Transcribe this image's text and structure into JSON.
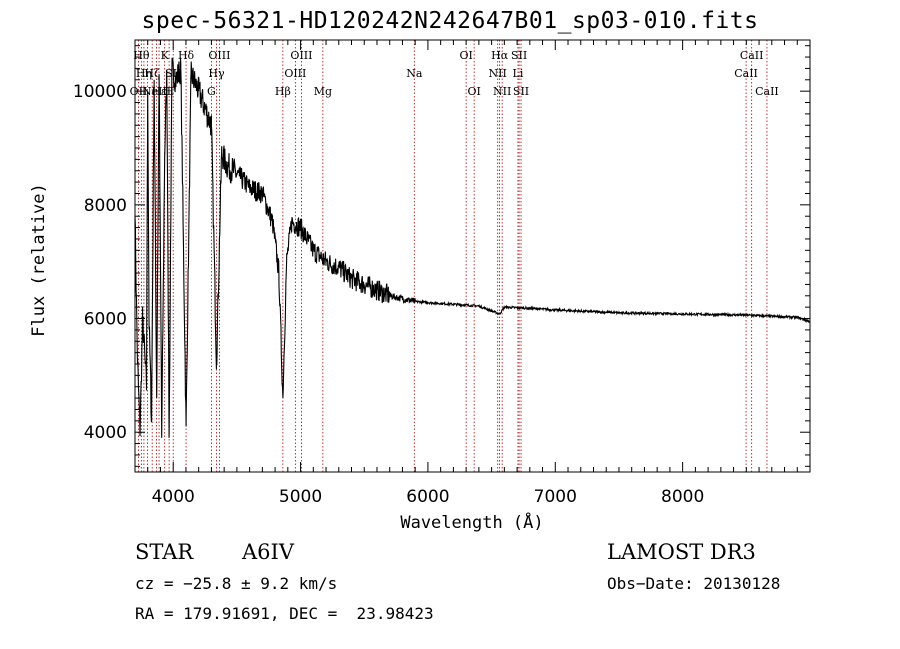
{
  "page_title": "spec-56321-HD120242N242647B01_sp03-010.fits",
  "chart_data": {
    "type": "line",
    "title": "spec-56321-HD120242N242647B01_sp03-010.fits",
    "xlabel": "Wavelength (Å)",
    "ylabel": "Flux (relative)",
    "xlim": [
      3700,
      9000
    ],
    "ylim": [
      3300,
      10900
    ],
    "x_ticks": [
      4000,
      5000,
      6000,
      7000,
      8000
    ],
    "y_ticks": [
      4000,
      6000,
      8000,
      10000
    ],
    "grid": false,
    "series": [
      {
        "x": [
          3700,
          3720,
          3740,
          3760,
          3790,
          3800,
          3810,
          3830,
          3850,
          3870,
          3889,
          3910,
          3933,
          3950,
          3968,
          3990,
          4020,
          4060,
          4101,
          4140,
          4200,
          4250,
          4300,
          4340,
          4380,
          4420,
          4470,
          4520,
          4600,
          4700,
          4780,
          4830,
          4861,
          4890,
          4930,
          5000,
          5100,
          5200,
          5300,
          5400,
          5500,
          5600,
          5700,
          5800,
          5900,
          6000,
          6200,
          6400,
          6563,
          6600,
          6800,
          7000,
          7500,
          8000,
          8500,
          8900,
          9000
        ],
        "y": [
          7800,
          5200,
          4000,
          6000,
          4800,
          10000,
          6000,
          4200,
          10200,
          4600,
          10300,
          3900,
          8900,
          10300,
          3900,
          10400,
          10200,
          10400,
          4100,
          10300,
          10000,
          9700,
          9400,
          5200,
          8900,
          8700,
          8600,
          8500,
          8300,
          8200,
          7700,
          6800,
          4600,
          7000,
          7700,
          7600,
          7200,
          7000,
          6900,
          6700,
          6600,
          6500,
          6400,
          6350,
          6300,
          6280,
          6250,
          6220,
          6080,
          6200,
          6180,
          6150,
          6100,
          6080,
          6060,
          6020,
          5950
        ]
      }
    ],
    "line_labels": [
      {
        "x": 3727,
        "label": "OII",
        "row": 3
      },
      {
        "x": 3750,
        "label": "Hθ",
        "row": 1
      },
      {
        "x": 3770,
        "label": "Hη",
        "row": 2
      },
      {
        "x": 3798,
        "label": "",
        "row": 0
      },
      {
        "x": 3835,
        "label": "Hζ",
        "row": 2
      },
      {
        "x": 3869,
        "label": "NeIII",
        "row": 3
      },
      {
        "x": 3889,
        "label": "Hε",
        "row": 3
      },
      {
        "x": 3933,
        "label": "K",
        "row": 1
      },
      {
        "x": 3968,
        "label": "H",
        "row": 3
      },
      {
        "x": 4000,
        "label": "SII",
        "row": 2
      },
      {
        "x": 4101,
        "label": "Hδ",
        "row": 1
      },
      {
        "x": 4300,
        "label": "G",
        "row": 3
      },
      {
        "x": 4340,
        "label": "Hγ",
        "row": 2
      },
      {
        "x": 4363,
        "label": "OIII",
        "row": 1
      },
      {
        "x": 4861,
        "label": "Hβ",
        "row": 3
      },
      {
        "x": 4959,
        "label": "OIII",
        "row": 2
      },
      {
        "x": 5007,
        "label": "OIII",
        "row": 1
      },
      {
        "x": 5175,
        "label": "Mg",
        "row": 3
      },
      {
        "x": 5893,
        "label": "Na",
        "row": 2
      },
      {
        "x": 6300,
        "label": "OI",
        "row": 1
      },
      {
        "x": 6363,
        "label": "OI",
        "row": 3
      },
      {
        "x": 6548,
        "label": "NII",
        "row": 2
      },
      {
        "x": 6563,
        "label": "Hα",
        "row": 1
      },
      {
        "x": 6583,
        "label": "NII",
        "row": 3
      },
      {
        "x": 6707,
        "label": "Li",
        "row": 2
      },
      {
        "x": 6716,
        "label": "SII",
        "row": 1
      },
      {
        "x": 6731,
        "label": "SII",
        "row": 3
      },
      {
        "x": 8498,
        "label": "CaII",
        "row": 2
      },
      {
        "x": 8542,
        "label": "CaII",
        "row": 1
      },
      {
        "x": 8662,
        "label": "CaII",
        "row": 3
      }
    ]
  },
  "footer": {
    "object_class": "STAR",
    "subclass": "A6IV",
    "survey": "LAMOST DR3",
    "cz": "cz = −25.8 ± 9.2 km/s",
    "obs_date": "Obs−Date: 20130128",
    "coords": "RA = 179.91691, DEC =  23.98423"
  }
}
